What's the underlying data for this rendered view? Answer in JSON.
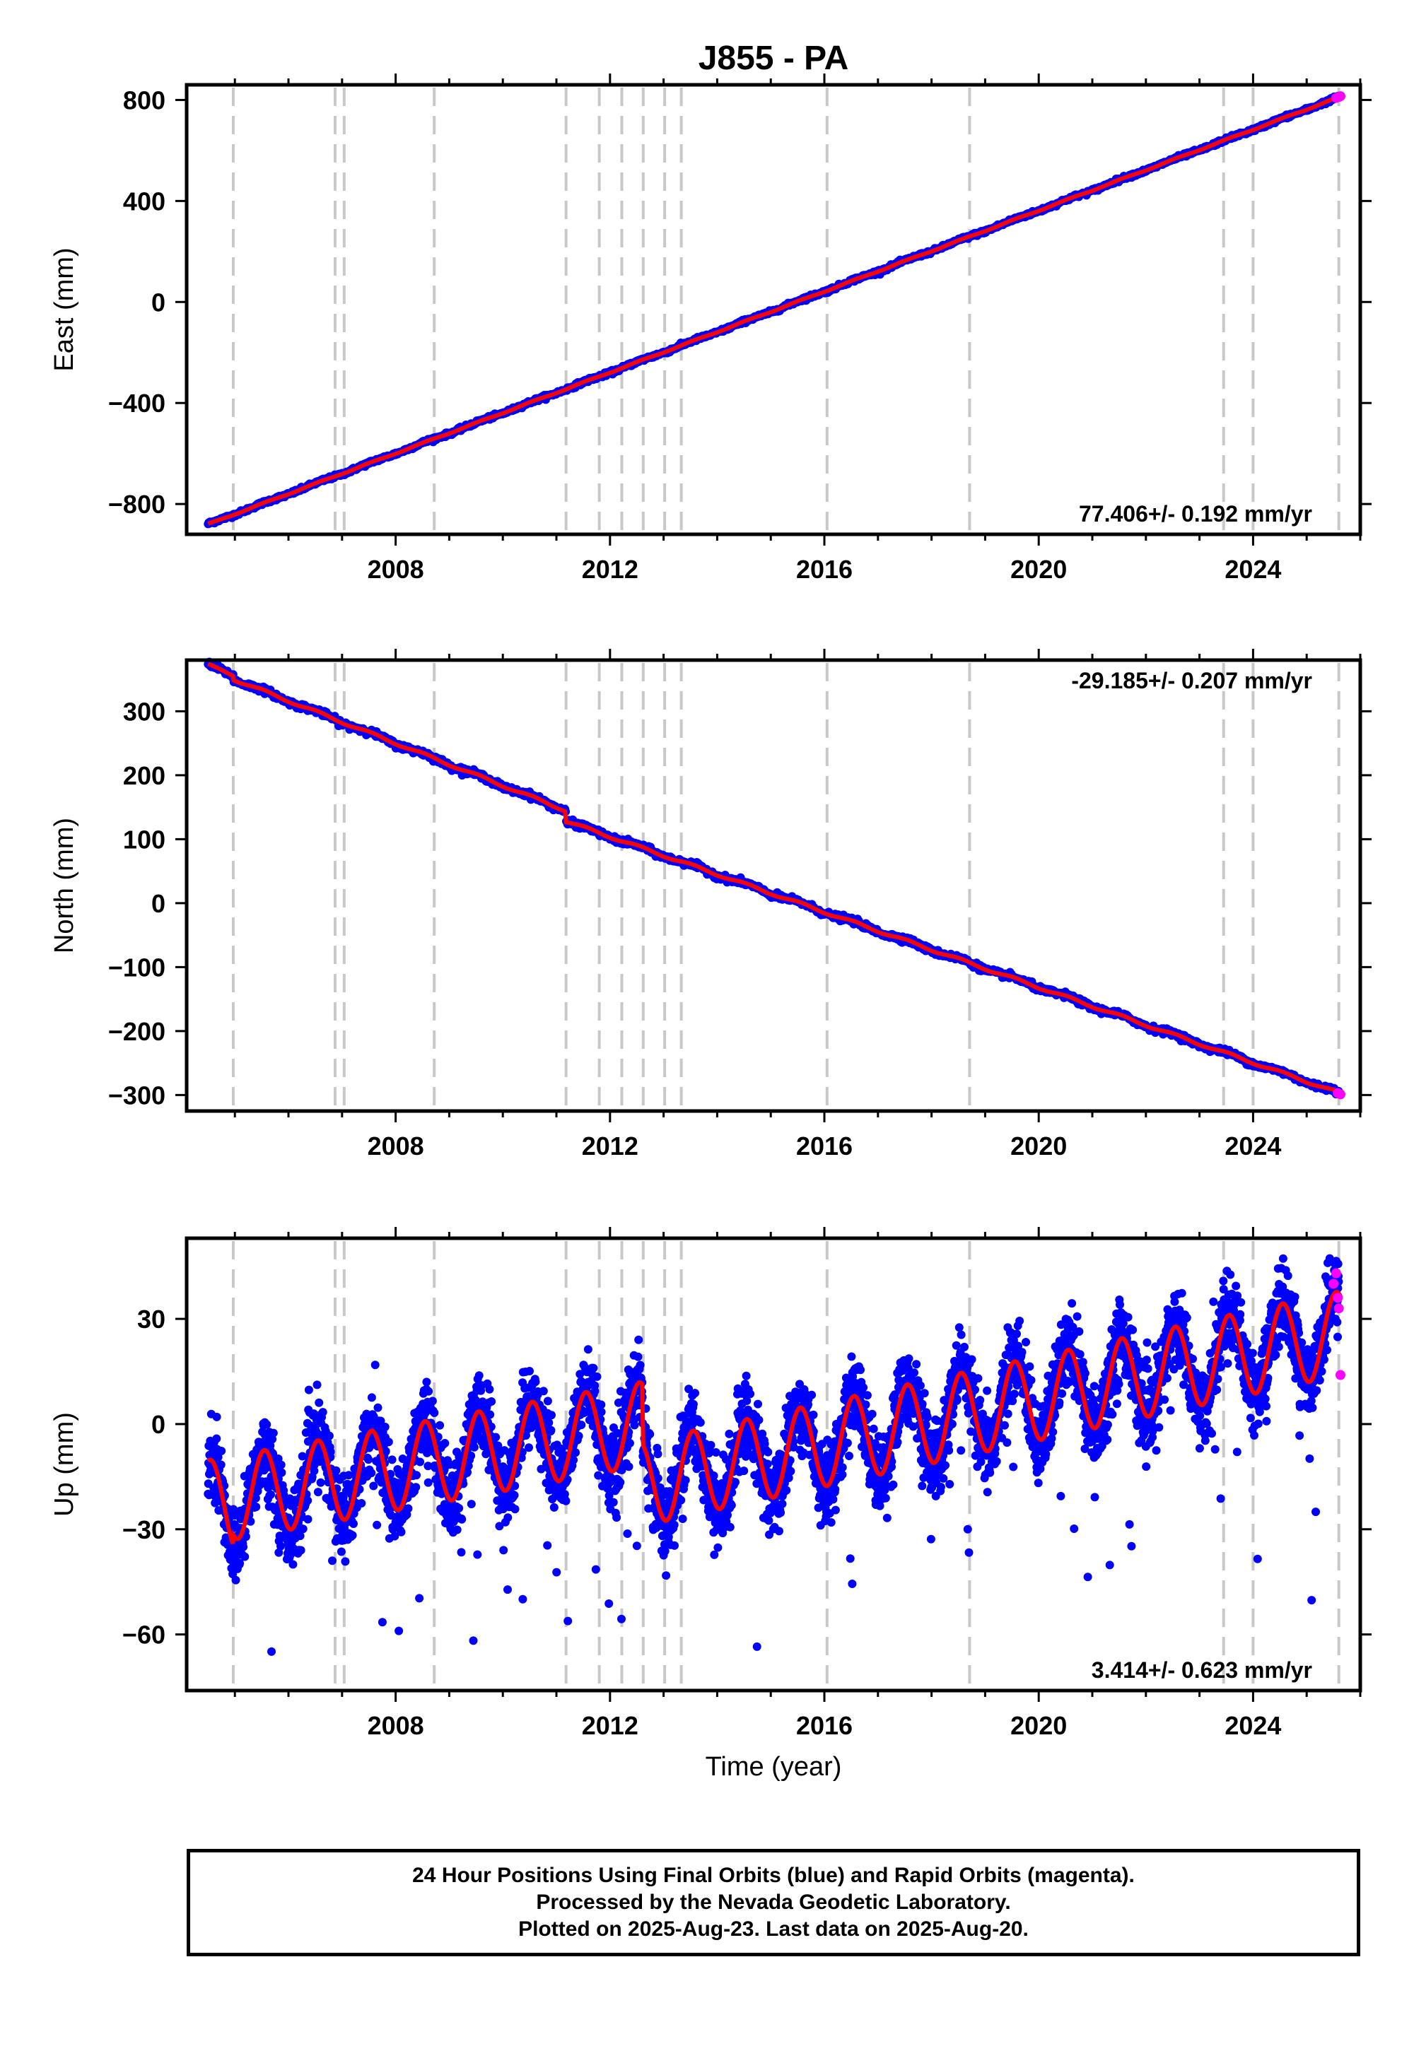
{
  "title": "J855 - PA",
  "xlabel": "Time (year)",
  "colors": {
    "final": "#0000ff",
    "rapid": "#ff00ff",
    "model": "#ff0000",
    "events": "#c8c8c8"
  },
  "caption": [
    "24 Hour Positions Using Final Orbits (blue) and Rapid Orbits (magenta).",
    "Processed by the Nevada Geodetic Laboratory.",
    "Plotted on 2025-Aug-23. Last data on 2025-Aug-20."
  ],
  "chart_data": [
    {
      "type": "scatter",
      "name": "east",
      "ylabel": "East (mm)",
      "xlim": [
        2004.1,
        2026.0
      ],
      "ylim": [
        -920,
        860
      ],
      "x_ticks": [
        2008,
        2012,
        2016,
        2020,
        2024
      ],
      "x_tick_labels": [
        "2008",
        "2012",
        "2016",
        "2020",
        "2024"
      ],
      "y_ticks": [
        800,
        400,
        0,
        -400,
        -800
      ],
      "y_tick_labels": [
        "800",
        "400",
        "0",
        "−400",
        "−800"
      ],
      "rate_label": "77.406+/- 0.192 mm/yr",
      "rate_position": "bottom-right",
      "trend": {
        "x": [
          2004.5,
          2025.65
        ],
        "y": [
          -880,
          815
        ]
      },
      "seasonal_amplitude": 2,
      "rapid_points": {
        "x": [
          2025.55,
          2025.6,
          2025.63
        ],
        "y": [
          808,
          812,
          815
        ]
      }
    },
    {
      "type": "scatter",
      "name": "north",
      "ylabel": "North (mm)",
      "xlim": [
        2004.1,
        2026.0
      ],
      "ylim": [
        -325,
        380
      ],
      "x_ticks": [
        2008,
        2012,
        2016,
        2020,
        2024
      ],
      "x_tick_labels": [
        "2008",
        "2012",
        "2016",
        "2020",
        "2024"
      ],
      "y_ticks": [
        300,
        200,
        100,
        0,
        -100,
        -200,
        -300
      ],
      "y_tick_labels": [
        "300",
        "200",
        "100",
        "0",
        "−100",
        "−200",
        "−300"
      ],
      "rate_label": "-29.185+/- 0.207 mm/yr",
      "rate_position": "top-right",
      "trend": {
        "x": [
          2004.5,
          2004.97,
          2004.98,
          2011.17,
          2011.18,
          2025.65
        ],
        "y": [
          372,
          357,
          350,
          145,
          128,
          -298
        ]
      },
      "seasonal_amplitude": 2,
      "rapid_points": {
        "x": [
          2025.58,
          2025.63
        ],
        "y": [
          -297,
          -299
        ]
      }
    },
    {
      "type": "scatter",
      "name": "up",
      "ylabel": "Up (mm)",
      "xlim": [
        2004.1,
        2026.0
      ],
      "ylim": [
        -76,
        53
      ],
      "x_ticks": [
        2008,
        2012,
        2016,
        2020,
        2024
      ],
      "x_tick_labels": [
        "2008",
        "2012",
        "2016",
        "2020",
        "2024"
      ],
      "y_ticks": [
        30,
        0,
        -30,
        -60
      ],
      "y_tick_labels": [
        "30",
        "0",
        "−30",
        "−60"
      ],
      "rate_label": "3.414+/- 0.623 mm/yr",
      "rate_position": "bottom-right",
      "trend": {
        "x": [
          2004.5,
          2004.97,
          2004.98,
          2012.6,
          2012.61,
          2025.65
        ],
        "y": [
          -22,
          -24,
          -21,
          0,
          -17,
          26
        ]
      },
      "seasonal_amplitude": 12,
      "rapid_points": {
        "x": [
          2025.5,
          2025.55,
          2025.58,
          2025.6,
          2025.63
        ],
        "y": [
          40,
          43,
          36,
          33,
          14
        ]
      }
    }
  ],
  "event_lines": [
    2004.97,
    2006.87,
    2007.04,
    2008.72,
    2011.18,
    2011.8,
    2012.22,
    2012.62,
    2013.02,
    2013.33,
    2016.05,
    2018.71,
    2023.45,
    2024.0,
    2025.6
  ]
}
